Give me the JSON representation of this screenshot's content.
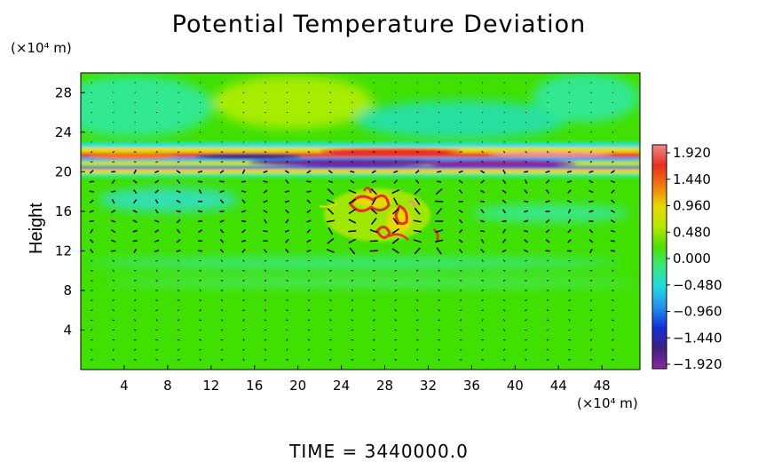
{
  "chart_data": {
    "type": "heatmap",
    "title": "Potential Temperature Deviation",
    "ylabel": "Height",
    "y_unit": "(×10⁴ m)",
    "x_unit": "(×10⁴ m)",
    "footer": "TIME = 3440000.0",
    "x_ticks": [
      "4",
      "8",
      "12",
      "16",
      "20",
      "24",
      "28",
      "32",
      "36",
      "40",
      "44",
      "48"
    ],
    "x_tick_values": [
      4,
      8,
      12,
      16,
      20,
      24,
      28,
      32,
      36,
      40,
      44,
      48
    ],
    "y_ticks": [
      "4",
      "8",
      "12",
      "16",
      "20",
      "24",
      "28"
    ],
    "y_tick_values": [
      4,
      8,
      12,
      16,
      20,
      24,
      28
    ],
    "xlim": [
      0,
      51.5
    ],
    "ylim": [
      0,
      30
    ],
    "colorbar": {
      "labels": [
        "1.920",
        "1.440",
        "0.960",
        "0.480",
        "0.000",
        "−0.480",
        "−0.960",
        "−1.440",
        "−1.920"
      ],
      "range": [
        -1.92,
        1.92
      ],
      "colors": [
        "#f08a8a",
        "#e83020",
        "#f07810",
        "#e8d800",
        "#b8e800",
        "#50e000",
        "#38e880",
        "#20d8e0",
        "#2090f0",
        "#1030d8",
        "#402080",
        "#8a2aa0"
      ]
    },
    "features": [
      {
        "name": "background",
        "value": 0.1
      },
      {
        "name": "upper-stable-layer",
        "y": [
          19.5,
          22.5
        ],
        "value": "alternating -1.9 to 1.9"
      },
      {
        "name": "convective-cell",
        "x": [
          22,
          34
        ],
        "y": [
          12,
          18
        ],
        "value": "up to 1.9"
      },
      {
        "name": "upper-warm-blob",
        "x": [
          14,
          26
        ],
        "y": [
          24,
          29
        ],
        "value": 0.5
      }
    ],
    "vectors": "wind vectors on regular grid, x spacing 2, y spacing 1"
  }
}
